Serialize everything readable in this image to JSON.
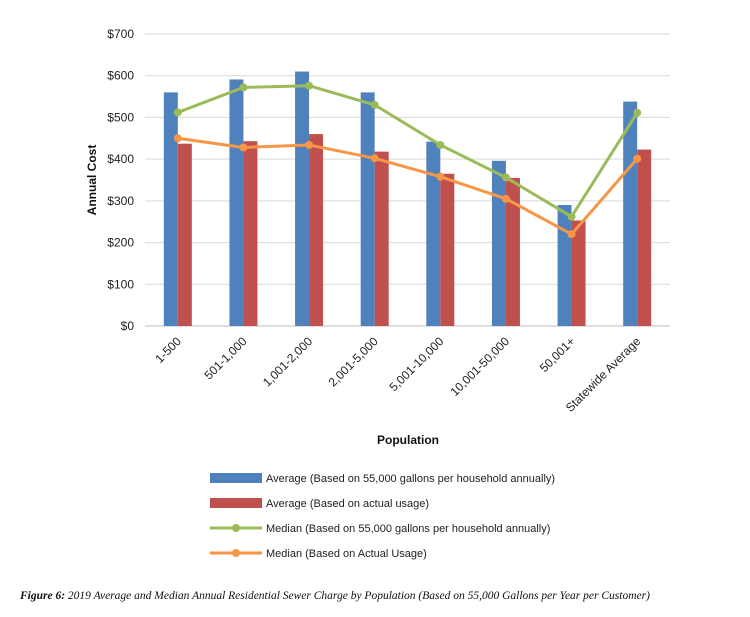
{
  "chart_data": {
    "type": "bar",
    "categories": [
      "1-500",
      "501-1,000",
      "1,001-2,000",
      "2,001-5,000",
      "5,001-10,000",
      "10,001-50,000",
      "50,001+",
      "Statewide Average"
    ],
    "series": [
      {
        "name": "Average (Based on 55,000 gallons per household annually)",
        "type": "bar",
        "color": "#4F81BD",
        "values": [
          560,
          591,
          610,
          560,
          442,
          396,
          290,
          538
        ]
      },
      {
        "name": "Average (Based on actual usage)",
        "type": "bar",
        "color": "#C0504D",
        "values": [
          437,
          443,
          460,
          418,
          365,
          355,
          253,
          423
        ]
      },
      {
        "name": "Median (Based on 55,000 gallons per household annually)",
        "type": "line",
        "color": "#9BBB59",
        "values": [
          512,
          572,
          576,
          530,
          434,
          356,
          262,
          511
        ]
      },
      {
        "name": "Median (Based on Actual Usage)",
        "type": "line",
        "color": "#F79646",
        "values": [
          450,
          428,
          434,
          402,
          358,
          305,
          220,
          401
        ]
      }
    ],
    "title": "",
    "xlabel": "Population",
    "ylabel": "Annual Cost",
    "ylim": [
      0,
      700
    ],
    "yticks": [
      "$0",
      "$100",
      "$200",
      "$300",
      "$400",
      "$500",
      "$600",
      "$700"
    ],
    "grid": true,
    "legend_position": "bottom"
  },
  "caption": {
    "label": "Figure 6:",
    "text": " 2019 Average and Median Annual Residential Sewer Charge by Population (Based on 55,000 Gallons per Year per Customer)"
  }
}
